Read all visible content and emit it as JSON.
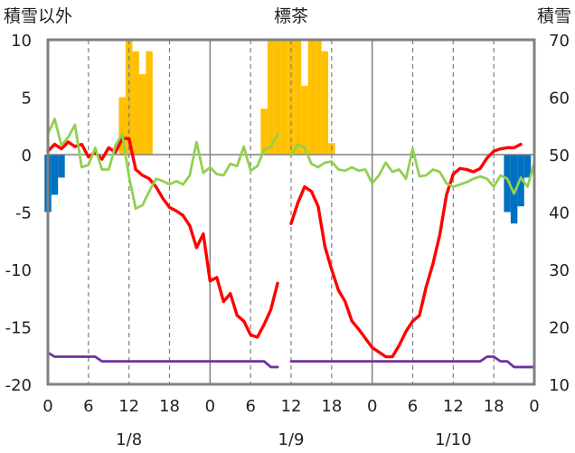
{
  "chart_data": {
    "type": "bar",
    "title": "標茶",
    "left_axis_title": "積雪以外",
    "right_axis_title": "積雪",
    "ylim_left": [
      -20,
      10
    ],
    "ylim_right": [
      10,
      70
    ],
    "y_ticks_left": [
      10,
      5,
      0,
      -5,
      -10,
      -15,
      -20
    ],
    "y_ticks_right": [
      70,
      60,
      50,
      40,
      30,
      20,
      10
    ],
    "x_range_hours": [
      0,
      72
    ],
    "x_tick_hours": [
      0,
      6,
      12,
      18,
      24,
      30,
      36,
      42,
      48,
      54,
      60,
      66,
      72
    ],
    "x_tick_labels": [
      "0",
      "6",
      "12",
      "18",
      "0",
      "6",
      "12",
      "18",
      "0",
      "6",
      "12",
      "18",
      "0"
    ],
    "date_labels": [
      {
        "hour": 12,
        "label": "1/8"
      },
      {
        "hour": 36,
        "label": "1/9"
      },
      {
        "hour": 60,
        "label": "1/10"
      }
    ],
    "grid": "dashed verticals at 12h, solid at 24h/48h, solid zero line",
    "series": [
      {
        "color": "#ffc000",
        "type": "bar",
        "axis": "left",
        "points": [
          [
            11,
            5
          ],
          [
            12,
            10
          ],
          [
            13,
            9
          ],
          [
            14,
            7
          ],
          [
            15,
            9
          ],
          [
            32,
            4
          ],
          [
            33,
            10
          ],
          [
            34,
            10
          ],
          [
            35,
            10
          ],
          [
            36,
            10
          ],
          [
            37,
            10
          ],
          [
            38,
            6
          ],
          [
            39,
            10
          ],
          [
            40,
            10
          ],
          [
            41,
            9
          ],
          [
            42,
            1
          ]
        ]
      },
      {
        "color": "#0070c0",
        "type": "bar",
        "axis": "left",
        "points": [
          [
            0,
            -5
          ],
          [
            1,
            -3.5
          ],
          [
            2,
            -2
          ],
          [
            68,
            -5
          ],
          [
            69,
            -6
          ],
          [
            70,
            -4.5
          ],
          [
            71,
            -2
          ]
        ]
      },
      {
        "color": "#ff0000",
        "type": "line",
        "axis": "left",
        "segments": [
          [
            [
              0,
              0.3
            ],
            [
              1,
              0.9
            ],
            [
              2,
              0.5
            ],
            [
              3,
              1.1
            ],
            [
              4,
              0.7
            ],
            [
              5,
              0.9
            ],
            [
              6,
              -0.2
            ],
            [
              7,
              0.2
            ],
            [
              8,
              -0.4
            ],
            [
              9,
              0.6
            ],
            [
              10,
              0.2
            ],
            [
              11,
              1.4
            ],
            [
              12,
              1.4
            ],
            [
              13,
              -1.3
            ],
            [
              14,
              -1.8
            ],
            [
              15,
              -2.1
            ],
            [
              16,
              -2.8
            ],
            [
              17,
              -3.8
            ],
            [
              18,
              -4.6
            ],
            [
              19,
              -4.9
            ],
            [
              20,
              -5.3
            ],
            [
              21,
              -6.2
            ],
            [
              22,
              -8.1
            ],
            [
              23,
              -6.9
            ],
            [
              24,
              -11
            ],
            [
              25,
              -10.7
            ],
            [
              26,
              -12.8
            ],
            [
              27,
              -12.1
            ],
            [
              28,
              -14
            ],
            [
              29,
              -14.5
            ],
            [
              30,
              -15.7
            ],
            [
              31,
              -15.9
            ],
            [
              32,
              -14.8
            ],
            [
              33,
              -13.5
            ],
            [
              34,
              -11.2
            ]
          ],
          [
            [
              36,
              -6
            ],
            [
              37,
              -4.2
            ],
            [
              38,
              -2.8
            ],
            [
              39,
              -3.2
            ],
            [
              40,
              -4.5
            ],
            [
              41,
              -8
            ],
            [
              42,
              -10
            ],
            [
              43,
              -11.8
            ],
            [
              44,
              -12.8
            ],
            [
              45,
              -14.5
            ],
            [
              46,
              -15.2
            ],
            [
              47,
              -16
            ],
            [
              48,
              -16.8
            ],
            [
              49,
              -17.2
            ],
            [
              50,
              -17.6
            ],
            [
              51,
              -17.6
            ],
            [
              52,
              -16.6
            ],
            [
              53,
              -15.4
            ],
            [
              54,
              -14.5
            ],
            [
              55,
              -14
            ],
            [
              56,
              -11.5
            ],
            [
              57,
              -9.5
            ],
            [
              58,
              -7
            ],
            [
              59,
              -3.5
            ],
            [
              60,
              -1.7
            ],
            [
              61,
              -1.2
            ],
            [
              62,
              -1.3
            ],
            [
              63,
              -1.5
            ],
            [
              64,
              -1.2
            ],
            [
              65,
              -0.3
            ],
            [
              66,
              0.3
            ],
            [
              67,
              0.5
            ],
            [
              68,
              0.6
            ],
            [
              69,
              0.6
            ],
            [
              70,
              0.9
            ]
          ]
        ]
      },
      {
        "color": "#92d050",
        "type": "line",
        "axis": "left",
        "segments": [
          [
            [
              0,
              1.8
            ],
            [
              1,
              3.1
            ],
            [
              2,
              0.8
            ],
            [
              3,
              1.5
            ],
            [
              4,
              2.6
            ],
            [
              5,
              -1.1
            ],
            [
              6,
              -0.9
            ],
            [
              7,
              0.6
            ],
            [
              8,
              -1.3
            ],
            [
              9,
              -1.3
            ],
            [
              10,
              0.8
            ],
            [
              11,
              1.8
            ],
            [
              12,
              -1.9
            ],
            [
              13,
              -4.7
            ],
            [
              14,
              -4.4
            ],
            [
              15,
              -3.2
            ],
            [
              16,
              -2.1
            ],
            [
              17,
              -2.3
            ],
            [
              18,
              -2.6
            ],
            [
              19,
              -2.3
            ],
            [
              20,
              -2.6
            ],
            [
              21,
              -1.8
            ],
            [
              22,
              1.1
            ],
            [
              23,
              -1.6
            ],
            [
              24,
              -1.1
            ],
            [
              25,
              -1.7
            ],
            [
              26,
              -1.8
            ],
            [
              27,
              -0.8
            ],
            [
              28,
              -1
            ],
            [
              29,
              0.7
            ],
            [
              30,
              -1.4
            ],
            [
              31,
              -1
            ],
            [
              32,
              0.4
            ],
            [
              33,
              0.7
            ],
            [
              34,
              1.8
            ]
          ],
          [
            [
              36,
              -0.1
            ],
            [
              37,
              0.9
            ],
            [
              38,
              0.6
            ],
            [
              39,
              -0.8
            ],
            [
              40,
              -1.1
            ],
            [
              41,
              -0.7
            ],
            [
              42,
              -0.6
            ],
            [
              43,
              -1.3
            ],
            [
              44,
              -1.4
            ],
            [
              45,
              -1.1
            ],
            [
              46,
              -1.4
            ],
            [
              47,
              -1.3
            ],
            [
              48,
              -2.5
            ],
            [
              49,
              -1.8
            ],
            [
              50,
              -0.7
            ],
            [
              51,
              -1.5
            ],
            [
              52,
              -1.3
            ],
            [
              53,
              -2.1
            ],
            [
              54,
              0.5
            ],
            [
              55,
              -1.9
            ],
            [
              56,
              -1.8
            ],
            [
              57,
              -1.3
            ],
            [
              58,
              -1.5
            ],
            [
              59,
              -2.5
            ],
            [
              60,
              -2.8
            ],
            [
              61,
              -2.6
            ],
            [
              62,
              -2.4
            ],
            [
              63,
              -2.1
            ],
            [
              64,
              -1.9
            ],
            [
              65,
              -2.1
            ],
            [
              66,
              -2.8
            ],
            [
              67,
              -1.8
            ],
            [
              68,
              -2.1
            ],
            [
              69,
              -3.4
            ],
            [
              70,
              -2
            ],
            [
              71,
              -2.8
            ],
            [
              72,
              -0.7
            ]
          ]
        ]
      },
      {
        "color": "#7030a0",
        "type": "line",
        "axis": "right",
        "segments": [
          [
            [
              0,
              15.5
            ],
            [
              1,
              14.8
            ],
            [
              2,
              14.8
            ],
            [
              3,
              14.8
            ],
            [
              4,
              14.8
            ],
            [
              5,
              14.8
            ],
            [
              6,
              14.8
            ],
            [
              7,
              14.8
            ],
            [
              8,
              14
            ],
            [
              12,
              14
            ],
            [
              18,
              14
            ],
            [
              24,
              14
            ],
            [
              30,
              14
            ],
            [
              32,
              14
            ],
            [
              33,
              13
            ],
            [
              34,
              13
            ]
          ],
          [
            [
              36,
              14
            ],
            [
              42,
              14
            ],
            [
              48,
              14
            ],
            [
              54,
              14
            ],
            [
              60,
              14
            ],
            [
              64,
              14
            ],
            [
              65,
              14.8
            ],
            [
              66,
              14.8
            ],
            [
              67,
              14
            ],
            [
              68,
              14
            ],
            [
              69,
              13
            ],
            [
              70,
              13
            ],
            [
              71,
              13
            ],
            [
              72,
              13
            ]
          ]
        ]
      }
    ]
  }
}
